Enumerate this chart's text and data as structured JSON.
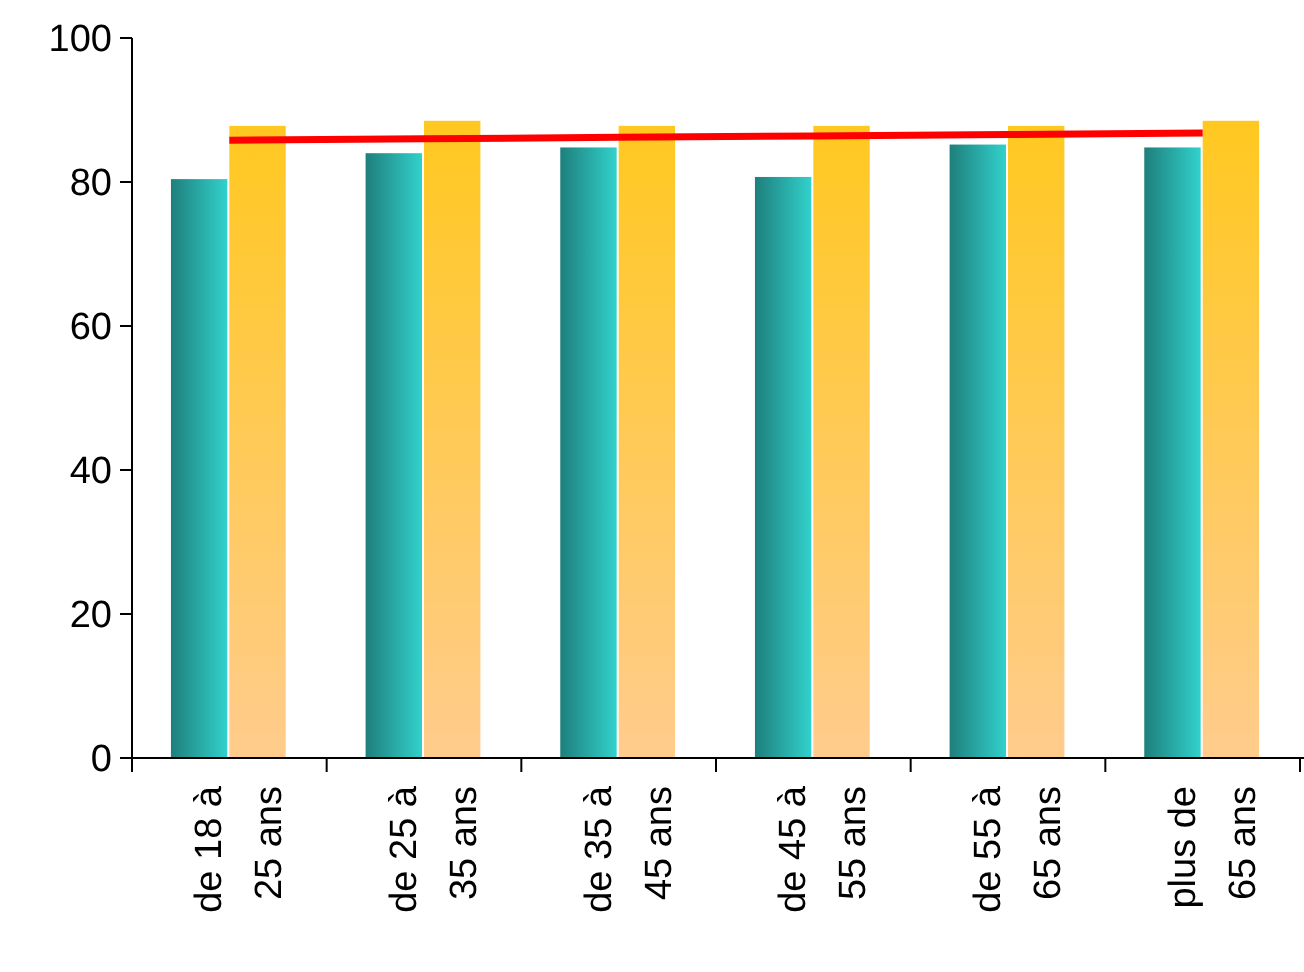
{
  "chart_data": {
    "type": "bar",
    "categories": [
      "de 18 à 25 ans",
      "de 25 à 35 ans",
      "de 35 à 45 ans",
      "de 45 à 55 ans",
      "de 55 à 65 ans",
      "plus de 65 ans"
    ],
    "series": [
      {
        "color": "#2bb5b1",
        "values": [
          80.4,
          84,
          84.8,
          80.7,
          85.2,
          84.8
        ]
      },
      {
        "color": "#ffc820",
        "values": [
          87.8,
          88.5,
          87.8,
          87.8,
          87.8,
          88.5
        ]
      },
      {
        "type": "line",
        "color": "#ff0000",
        "values": [
          85.8,
          86,
          86.2,
          86.4,
          86.6,
          86.8
        ]
      }
    ],
    "ylim": [
      0,
      100
    ],
    "yticks": [
      0,
      20,
      40,
      60,
      80,
      100
    ],
    "grid": false,
    "marker": "none"
  }
}
